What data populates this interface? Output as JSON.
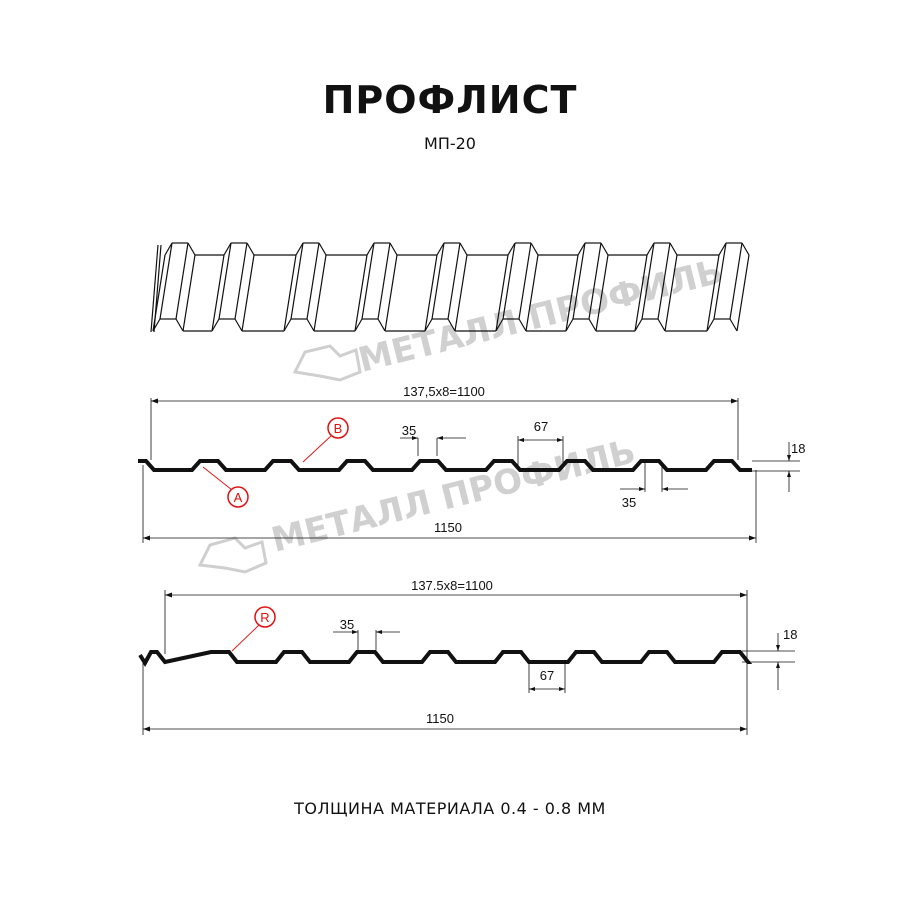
{
  "title": "ПРОФЛИСТ",
  "subtitle": "МП-20",
  "footer": "ТОЛЩИНА МАТЕРИАЛА 0.4 - 0.8 ММ",
  "watermark": "МЕТАЛЛ ПРОФИЛЬ",
  "colors": {
    "profile": "#111111",
    "marker": "#e01010",
    "watermark": "#c8c8c8"
  },
  "profile_a": {
    "pitch_label": "137,5x8=1100",
    "width_label": "1150",
    "top_width_label": "35",
    "bottom_top_width_label": "35",
    "trough_label": "67",
    "height_label": "18",
    "markers": [
      "A",
      "B"
    ]
  },
  "profile_b": {
    "pitch_label": "137.5x8=1100",
    "width_label": "1150",
    "top_width_label": "35",
    "trough_label": "67",
    "height_label": "18",
    "markers": [
      "R"
    ]
  }
}
